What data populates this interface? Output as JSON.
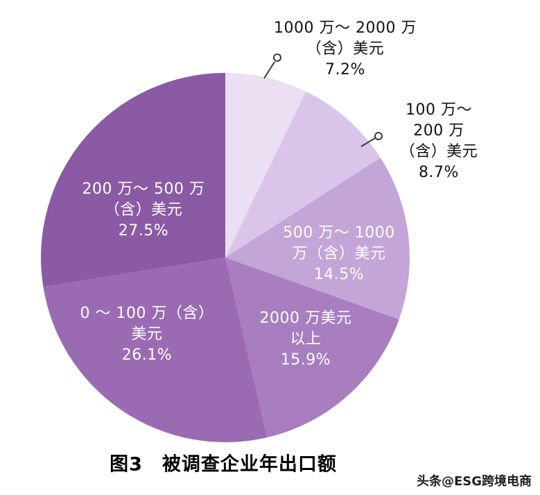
{
  "figure": {
    "title": "图3　被调查企业年出口额",
    "watermark": "头条@ESG跨境电商"
  },
  "chart_data": {
    "type": "pie",
    "title": "图3　被调查企业年出口额",
    "unit": "percent",
    "start_angle_deg": 0,
    "direction": "clockwise",
    "slices": [
      {
        "name": "1000万～2000万（含）美元",
        "value": 7.2,
        "color": "#ebdff3",
        "text_color": "#111111",
        "label_placement": "outside",
        "label_lines": [
          "1000 万～ 2000 万",
          "（含）美元",
          "7.2%"
        ]
      },
      {
        "name": "100万～200万（含）美元",
        "value": 8.7,
        "color": "#d9c5e9",
        "text_color": "#111111",
        "label_placement": "outside",
        "label_lines": [
          "100 万～ 200 万",
          "（含）美元",
          "8.7%"
        ]
      },
      {
        "name": "500万～1000万（含）美元",
        "value": 14.5,
        "color": "#c3a5d8",
        "text_color": "#ffffff",
        "label_placement": "inside",
        "label_lines": [
          "500 万～ 1000",
          "万（含）美元",
          "14.5%"
        ]
      },
      {
        "name": "2000万美元以上",
        "value": 15.9,
        "color": "#a87ec1",
        "text_color": "#ffffff",
        "label_placement": "inside",
        "label_lines": [
          "2000 万美元",
          "以上",
          "15.9%"
        ]
      },
      {
        "name": "0～100万（含）美元",
        "value": 26.1,
        "color": "#9a6bb3",
        "text_color": "#ffffff",
        "label_placement": "inside",
        "label_lines": [
          "0 ～ 100 万（含）",
          "美元",
          "26.1%"
        ]
      },
      {
        "name": "200万～500万（含）美元",
        "value": 27.5,
        "color": "#8a5aa5",
        "text_color": "#ffffff",
        "label_placement": "inside",
        "label_lines": [
          "200 万～ 500 万",
          "（含）美元",
          "27.5%"
        ]
      }
    ]
  }
}
